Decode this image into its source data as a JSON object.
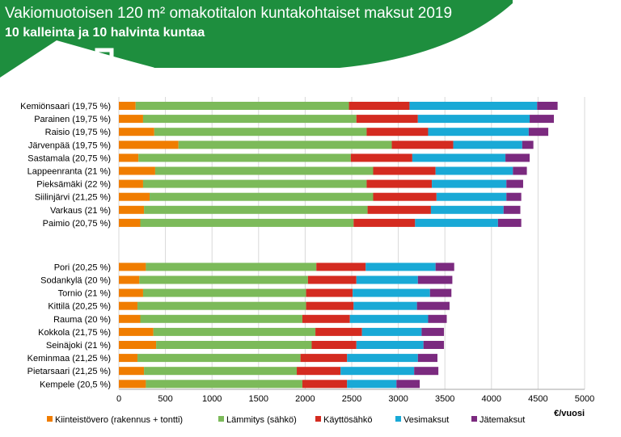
{
  "header": {
    "title": "Vakiomuotoisen 120 m² omakotitalon kuntakohtaiset maksut 2019",
    "subtitle": "10 kalleinta ja 10 halvinta kuntaa"
  },
  "colors": {
    "banner": "#1e8e3e",
    "grid": "#d9d9d9",
    "axis": "#a6a6a6"
  },
  "chart_data": {
    "type": "bar",
    "orientation": "horizontal",
    "stacked": true,
    "unit_label": "€/vuosi",
    "xlim": [
      0,
      5000
    ],
    "x_ticks": [
      0,
      500,
      1000,
      1500,
      2000,
      2500,
      3000,
      3500,
      4000,
      4500,
      5000
    ],
    "grid": true,
    "legend_position": "bottom",
    "categories": [
      "Kemiönsaari (19,75 %)",
      "Parainen (19,75 %)",
      "Raisio (19,75 %)",
      "Järvenpää (19,75 %)",
      "Sastamala (20,75 %)",
      "Lappeenranta (21 %)",
      "Pieksämäki (22 %)",
      "Siilinjärvi (21,25 %)",
      "Varkaus (21 %)",
      "Paimio (20,75 %)",
      "Pori (20,25 %)",
      "Sodankylä (20 %)",
      "Tornio (21 %)",
      "Kittilä (20,25 %)",
      "Rauma (20 %)",
      "Kokkola (21,75 %)",
      "Seinäjoki (21 %)",
      "Keminmaa (21,25 %)",
      "Pietarsaari (21,25 %)",
      "Kempele (20,5 %)"
    ],
    "gap_after_index": 9,
    "series": [
      {
        "name": "Kiinteistövero (rakennus + tontti)",
        "color": "#f07d00",
        "values": [
          180,
          260,
          380,
          640,
          210,
          390,
          260,
          330,
          270,
          230,
          290,
          220,
          260,
          200,
          230,
          370,
          400,
          200,
          270,
          290
        ]
      },
      {
        "name": "Lämmitys (sähkö)",
        "color": "#7cba5a",
        "values": [
          2290,
          2290,
          2280,
          2290,
          2280,
          2340,
          2400,
          2400,
          2400,
          2290,
          1830,
          1810,
          1750,
          1810,
          1740,
          1740,
          1670,
          1750,
          1640,
          1680
        ]
      },
      {
        "name": "Käyttösähkö",
        "color": "#d42b20",
        "values": [
          650,
          660,
          660,
          660,
          660,
          670,
          700,
          680,
          680,
          660,
          530,
          520,
          500,
          510,
          510,
          500,
          480,
          500,
          470,
          480
        ]
      },
      {
        "name": "Vesimaksut",
        "color": "#19a9d6",
        "values": [
          1370,
          1200,
          1080,
          740,
          1000,
          830,
          800,
          750,
          780,
          890,
          750,
          660,
          830,
          680,
          840,
          640,
          720,
          760,
          790,
          530
        ]
      },
      {
        "name": "Jätemaksut",
        "color": "#7b2a7f",
        "values": [
          220,
          260,
          210,
          120,
          260,
          150,
          180,
          160,
          180,
          250,
          200,
          370,
          230,
          350,
          200,
          240,
          220,
          210,
          260,
          250
        ]
      }
    ]
  }
}
